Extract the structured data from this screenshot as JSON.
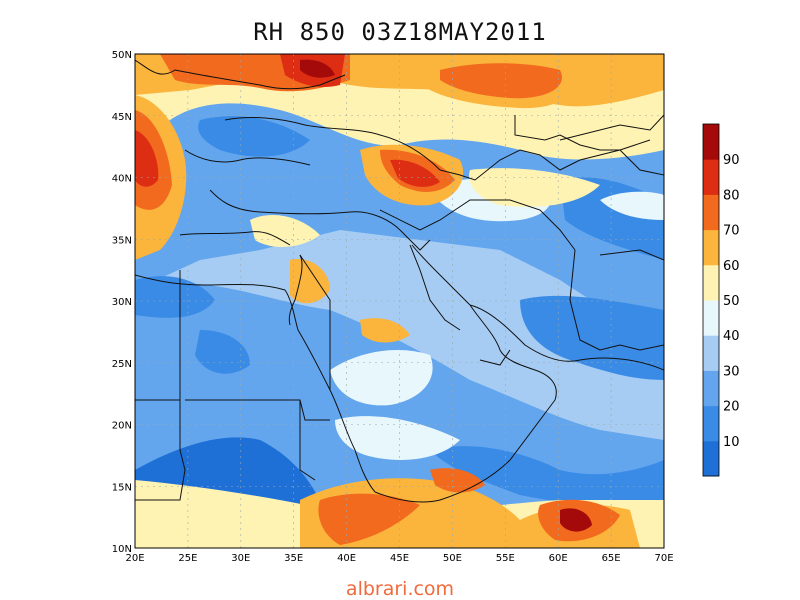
{
  "title": "RH 850 03Z18MAY2011",
  "footer": "albrari.com",
  "axes": {
    "lon_labels": [
      "20E",
      "25E",
      "30E",
      "35E",
      "40E",
      "45E",
      "50E",
      "55E",
      "60E",
      "65E",
      "70E"
    ],
    "lat_labels": [
      "10N",
      "15N",
      "20N",
      "25N",
      "30N",
      "35N",
      "40N",
      "45N",
      "50N"
    ],
    "lon_range": [
      20,
      70
    ],
    "lat_range": [
      10,
      50
    ]
  },
  "colorbar": {
    "labels": [
      "10",
      "20",
      "30",
      "40",
      "50",
      "60",
      "70",
      "80",
      "90"
    ],
    "colors": [
      "#1e6fd6",
      "#3a8be6",
      "#63a6ee",
      "#a7ccf3",
      "#e8f7fc",
      "#fff3b3",
      "#fbb43c",
      "#f26a1e",
      "#dd2e14",
      "#a50a0a"
    ]
  }
}
